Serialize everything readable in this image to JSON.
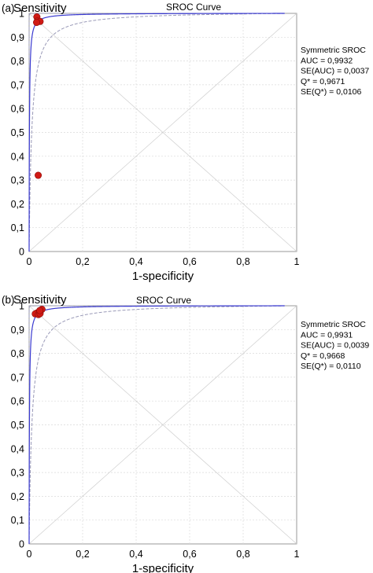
{
  "chart_data": [
    {
      "type": "line",
      "panel_label": "(a)",
      "title": "SROC Curve",
      "xlabel": "1-specificity",
      "ylabel": "Sensitivity",
      "xlim": [
        0,
        1
      ],
      "ylim": [
        0,
        1
      ],
      "x_ticks": [
        "0",
        "0,2",
        "0,4",
        "0,6",
        "0,8",
        "1"
      ],
      "y_ticks": [
        "0",
        "0,1",
        "0,2",
        "0,3",
        "0,4",
        "0,5",
        "0,6",
        "0,7",
        "0,8",
        "0,9",
        "1"
      ],
      "grid": true,
      "curve_auc": 0.9932,
      "band_se_auc": 0.0037,
      "curve_color": "#3a3ad0",
      "band_color": "#9a9ab8",
      "point_color": "#d01a14",
      "points": [
        {
          "x": 0.029,
          "y": 0.985
        },
        {
          "x": 0.031,
          "y": 0.968
        },
        {
          "x": 0.041,
          "y": 0.966
        },
        {
          "x": 0.028,
          "y": 0.962
        },
        {
          "x": 0.034,
          "y": 0.32
        }
      ],
      "stats": [
        "Symmetric SROC",
        "AUC = 0,9932",
        "SE(AUC) = 0,0037",
        "Q* = 0,9671",
        "SE(Q*) = 0,0106"
      ]
    },
    {
      "type": "line",
      "panel_label": "(b)",
      "title": "SROC Curve",
      "xlabel": "1-specificity",
      "ylabel": "Sensitivity",
      "xlim": [
        0,
        1
      ],
      "ylim": [
        0,
        1
      ],
      "x_ticks": [
        "0",
        "0,2",
        "0,4",
        "0,6",
        "0,8",
        "1"
      ],
      "y_ticks": [
        "0",
        "0,1",
        "0,2",
        "0,3",
        "0,4",
        "0,5",
        "0,6",
        "0,7",
        "0,8",
        "0,9",
        "1"
      ],
      "grid": true,
      "curve_auc": 0.9931,
      "band_se_auc": 0.0039,
      "curve_color": "#3a3ad0",
      "band_color": "#9a9ab8",
      "point_color": "#d01a14",
      "points": [
        {
          "x": 0.048,
          "y": 0.985
        },
        {
          "x": 0.03,
          "y": 0.97
        },
        {
          "x": 0.023,
          "y": 0.966
        },
        {
          "x": 0.035,
          "y": 0.963
        },
        {
          "x": 0.041,
          "y": 0.967
        },
        {
          "x": 0.04,
          "y": 0.98
        }
      ],
      "stats": [
        "Symmetric SROC",
        "AUC = 0,9931",
        "SE(AUC) = 0,0039",
        "Q* = 0,9668",
        "SE(Q*) = 0,0110"
      ]
    }
  ]
}
